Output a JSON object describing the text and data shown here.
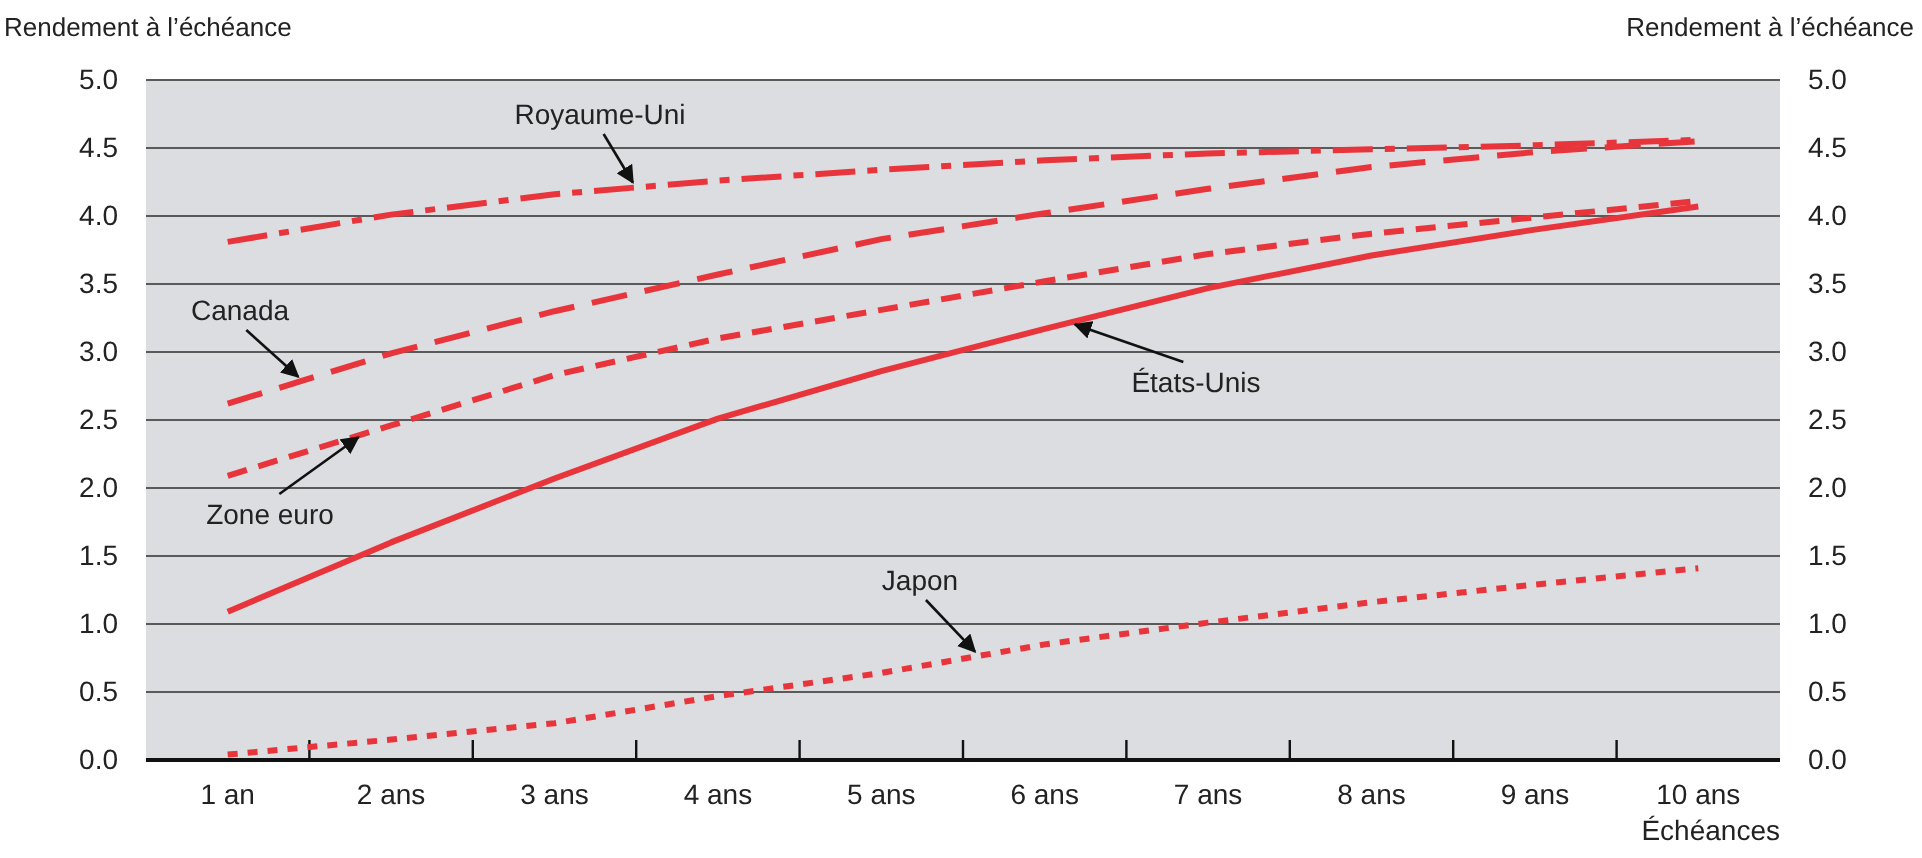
{
  "chart_data": {
    "type": "line",
    "ylabel": "Rendement à l’échéance",
    "y2label": "Rendement à l’échéance",
    "xlabel": "Échéances",
    "categories": [
      "1 an",
      "2 ans",
      "3 ans",
      "4 ans",
      "5 ans",
      "6 ans",
      "7 ans",
      "8 ans",
      "9 ans",
      "10 ans"
    ],
    "ylim": [
      0,
      5
    ],
    "yticks": [
      {
        "value": 0,
        "label": "0.0"
      },
      {
        "value": 0.5,
        "label": "0.5"
      },
      {
        "value": 1,
        "label": "1.0"
      },
      {
        "value": 1.5,
        "label": "1.5"
      },
      {
        "value": 2,
        "label": "2.0"
      },
      {
        "value": 2.5,
        "label": "2.5"
      },
      {
        "value": 3,
        "label": "3.0"
      },
      {
        "value": 3.5,
        "label": "3.5"
      },
      {
        "value": 4,
        "label": "4.0"
      },
      {
        "value": 4.5,
        "label": "4.5"
      },
      {
        "value": 5,
        "label": "5.0"
      }
    ],
    "y2lim": [
      0,
      5
    ],
    "y2ticks": [
      {
        "value": 0,
        "label": "0.0"
      },
      {
        "value": 0.5,
        "label": "0.5"
      },
      {
        "value": 1,
        "label": "1.0"
      },
      {
        "value": 1.5,
        "label": "1.5"
      },
      {
        "value": 2,
        "label": "2.0"
      },
      {
        "value": 2.5,
        "label": "2.5"
      },
      {
        "value": 3,
        "label": "3.0"
      },
      {
        "value": 3.5,
        "label": "3.5"
      },
      {
        "value": 4,
        "label": "4.0"
      },
      {
        "value": 4.5,
        "label": "4.5"
      },
      {
        "value": 5,
        "label": "5.0"
      }
    ],
    "grid": "y",
    "marker": "none",
    "series": [
      {
        "name": "Royaume-Uni",
        "color": "#e8353c",
        "line_style": "dashdot",
        "values": [
          3.81,
          4.01,
          4.16,
          4.26,
          4.34,
          4.41,
          4.46,
          4.49,
          4.52,
          4.56
        ]
      },
      {
        "name": "Canada",
        "color": "#e8353c",
        "line_style": "longdash",
        "values": [
          2.62,
          2.99,
          3.3,
          3.57,
          3.83,
          4.02,
          4.2,
          4.36,
          4.47,
          4.55
        ]
      },
      {
        "name": "Zone euro",
        "color": "#e8353c",
        "line_style": "dashed",
        "values": [
          2.09,
          2.46,
          2.83,
          3.1,
          3.31,
          3.52,
          3.72,
          3.87,
          3.99,
          4.11
        ]
      },
      {
        "name": "États-Unis",
        "color": "#e8353c",
        "line_style": "solid",
        "values": [
          1.09,
          1.6,
          2.07,
          2.51,
          2.86,
          3.17,
          3.47,
          3.71,
          3.9,
          4.07
        ]
      },
      {
        "name": "Japon",
        "color": "#e8353c",
        "line_style": "dotted",
        "values": [
          0.04,
          0.15,
          0.27,
          0.47,
          0.64,
          0.85,
          1.01,
          1.16,
          1.29,
          1.41
        ]
      }
    ]
  }
}
